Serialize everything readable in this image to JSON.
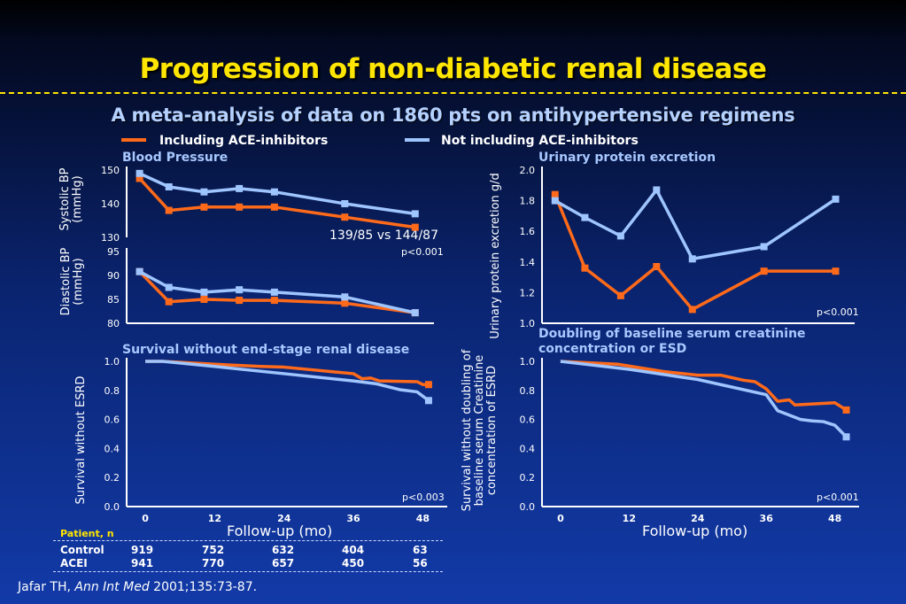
{
  "title": "Progression of non-diabetic renal disease",
  "subtitle": "A meta-analysis of data on 1860 pts on antihypertensive regimens",
  "colors": {
    "ace": "#ff6a1a",
    "noace": "#9fc5ff",
    "title": "#ffe600",
    "panel_title": "#a8c8ff"
  },
  "legend": [
    {
      "label": "Including ACE-inhibitors",
      "color": "#ff6a1a"
    },
    {
      "label": "Not including ACE-inhibitors",
      "color": "#9fc5ff"
    }
  ],
  "annotation_bp": "139/85 vs 144/87",
  "xlabel": "Follow-up (mo)",
  "patient_table": {
    "header": "Patient, n",
    "rows": [
      {
        "label": "Control",
        "values": [
          "919",
          "752",
          "632",
          "404",
          "63"
        ]
      },
      {
        "label": "ACEI",
        "values": [
          "941",
          "770",
          "657",
          "450",
          "56"
        ]
      }
    ]
  },
  "citation": {
    "authors": "Jafar TH,",
    "journal": "Ann Int Med",
    "ref": "2001;135:73-87."
  },
  "chart_data": [
    {
      "id": "systolic",
      "type": "line",
      "title": "Blood Pressure",
      "ylabel": "Systolic BP (mmHg)",
      "ylim": [
        130,
        150
      ],
      "yticks": [
        130,
        140,
        150
      ],
      "pvalue": "",
      "series": [
        {
          "name": "Including ACE-inhibitors",
          "key": "ace",
          "points": [
            [
              1,
              147.5
            ],
            [
              6,
              138
            ],
            [
              12,
              139
            ],
            [
              18,
              139
            ],
            [
              24,
              139
            ],
            [
              36,
              136
            ],
            [
              48,
              133
            ]
          ]
        },
        {
          "name": "Not including ACE-inhibitors",
          "key": "noace",
          "points": [
            [
              1,
              149
            ],
            [
              6,
              145
            ],
            [
              12,
              143.5
            ],
            [
              18,
              144.5
            ],
            [
              24,
              143.5
            ],
            [
              36,
              140
            ],
            [
              48,
              137
            ]
          ]
        }
      ]
    },
    {
      "id": "diastolic",
      "type": "line",
      "ylabel": "Diastolic BP (mmHg)",
      "ylim": [
        80,
        95
      ],
      "yticks": [
        80,
        85,
        90,
        95
      ],
      "pvalue": "p<0.001",
      "series": [
        {
          "name": "Including ACE-inhibitors",
          "key": "ace",
          "points": [
            [
              1,
              90.8
            ],
            [
              6,
              84.5
            ],
            [
              12,
              85
            ],
            [
              18,
              84.8
            ],
            [
              24,
              84.8
            ],
            [
              36,
              84.2
            ],
            [
              48,
              82.2
            ]
          ]
        },
        {
          "name": "Not including ACE-inhibitors",
          "key": "noace",
          "points": [
            [
              1,
              90.8
            ],
            [
              6,
              87.5
            ],
            [
              12,
              86.5
            ],
            [
              18,
              87
            ],
            [
              24,
              86.5
            ],
            [
              36,
              85.5
            ],
            [
              48,
              82.2
            ]
          ]
        }
      ]
    },
    {
      "id": "protein",
      "type": "line",
      "title": "Urinary protein excretion",
      "ylabel": "Urinary protein excretion g/d",
      "ylim": [
        1.0,
        2.0
      ],
      "yticks": [
        1.0,
        1.2,
        1.4,
        1.6,
        1.8,
        2.0
      ],
      "pvalue": "p<0.001",
      "series": [
        {
          "name": "Including ACE-inhibitors",
          "key": "ace",
          "points": [
            [
              1,
              1.84
            ],
            [
              6,
              1.36
            ],
            [
              12,
              1.18
            ],
            [
              18,
              1.37
            ],
            [
              24,
              1.09
            ],
            [
              36,
              1.34
            ],
            [
              48,
              1.34
            ]
          ]
        },
        {
          "name": "Not including ACE-inhibitors",
          "key": "noace",
          "points": [
            [
              1,
              1.8
            ],
            [
              6,
              1.69
            ],
            [
              12,
              1.57
            ],
            [
              18,
              1.87
            ],
            [
              24,
              1.42
            ],
            [
              36,
              1.5
            ],
            [
              48,
              1.81
            ]
          ]
        }
      ]
    },
    {
      "id": "survival",
      "type": "line",
      "title": "Survival without end-stage renal disease",
      "ylabel": "Survival without ESRD",
      "xlabel": "Follow-up (mo)",
      "xticks": [
        0,
        12,
        24,
        36,
        48
      ],
      "ylim": [
        0.0,
        1.0
      ],
      "yticks": [
        0.0,
        0.2,
        0.4,
        0.6,
        0.8,
        1.0
      ],
      "pvalue": "p<0.003",
      "series": [
        {
          "name": "Including ACE-inhibitors",
          "key": "ace",
          "points": [
            [
              0,
              1.0
            ],
            [
              3,
              1.0
            ],
            [
              12,
              0.98
            ],
            [
              20,
              0.965
            ],
            [
              24,
              0.96
            ],
            [
              36,
              0.915
            ],
            [
              37.5,
              0.88
            ],
            [
              39,
              0.885
            ],
            [
              40.5,
              0.865
            ],
            [
              47,
              0.86
            ],
            [
              48,
              0.84
            ],
            [
              49,
              0.84
            ]
          ]
        },
        {
          "name": "Not including ACE-inhibitors",
          "key": "noace",
          "points": [
            [
              0,
              1.0
            ],
            [
              3,
              1.0
            ],
            [
              12,
              0.965
            ],
            [
              24,
              0.915
            ],
            [
              36,
              0.865
            ],
            [
              40,
              0.845
            ],
            [
              44,
              0.805
            ],
            [
              47,
              0.79
            ],
            [
              49,
              0.73
            ]
          ]
        }
      ]
    },
    {
      "id": "doubling",
      "type": "line",
      "title": "Doubling of baseline serum creatinine concentration or ESD",
      "ylabel": "Survival without doubling of baseline serum Creatinine concentration of ESRD",
      "xlabel": "Follow-up (mo)",
      "xticks": [
        0,
        12,
        24,
        36,
        48
      ],
      "ylim": [
        0.0,
        1.0
      ],
      "yticks": [
        0.0,
        0.2,
        0.4,
        0.6,
        0.8,
        1.0
      ],
      "pvalue": "p<0.001",
      "series": [
        {
          "name": "Including ACE-inhibitors",
          "key": "ace",
          "points": [
            [
              0,
              1.0
            ],
            [
              10,
              0.98
            ],
            [
              18,
              0.93
            ],
            [
              24,
              0.905
            ],
            [
              28,
              0.905
            ],
            [
              32,
              0.87
            ],
            [
              34,
              0.86
            ],
            [
              36,
              0.81
            ],
            [
              38,
              0.725
            ],
            [
              40,
              0.735
            ],
            [
              41,
              0.7
            ],
            [
              48,
              0.715
            ],
            [
              50,
              0.665
            ]
          ]
        },
        {
          "name": "Not including ACE-inhibitors",
          "key": "noace",
          "points": [
            [
              0,
              1.0
            ],
            [
              12,
              0.945
            ],
            [
              24,
              0.875
            ],
            [
              36,
              0.77
            ],
            [
              38,
              0.66
            ],
            [
              42,
              0.6
            ],
            [
              44,
              0.59
            ],
            [
              46,
              0.585
            ],
            [
              48,
              0.56
            ],
            [
              50,
              0.48
            ]
          ]
        }
      ]
    }
  ]
}
